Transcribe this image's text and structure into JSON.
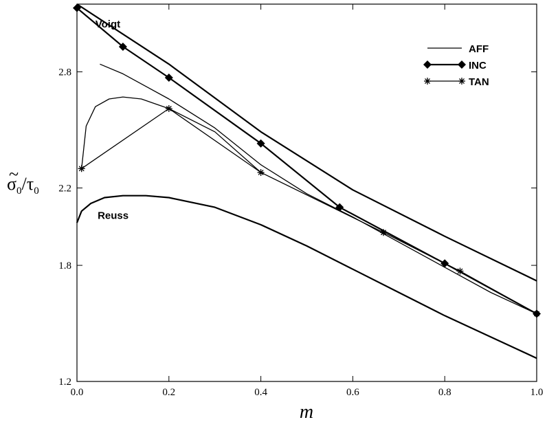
{
  "chart_data": {
    "type": "line",
    "xlabel": "m",
    "ylabel": {
      "tilde": "~",
      "sigma": "σ",
      "sigma_sub": "0",
      "slash": "/",
      "tau": "τ",
      "tau_sub": "0"
    },
    "xlim": [
      0,
      1.0
    ],
    "ylim": [
      1.2,
      3.15
    ],
    "xticks": [
      "0.0",
      "0.2",
      "0.4",
      "0.6",
      "0.8",
      "1.0"
    ],
    "yticks": [
      "1.2",
      "1.8",
      "2.2",
      "2.8"
    ],
    "ytick_values": [
      1.2,
      1.8,
      2.2,
      2.8
    ],
    "legend_position": "top-right",
    "annotations": [
      {
        "text": "Voigt",
        "x": 0.04,
        "y": 3.03
      },
      {
        "text": "Reuss",
        "x": 0.045,
        "y": 2.04
      }
    ],
    "series": [
      {
        "name": "",
        "label": "Voigt",
        "style": "thick",
        "marker": "none",
        "x": [
          0.0,
          0.2,
          0.4,
          0.6,
          0.8,
          1.0
        ],
        "y": [
          3.15,
          2.84,
          2.49,
          2.19,
          1.95,
          1.72
        ]
      },
      {
        "name": "",
        "label": "Reuss",
        "style": "thick",
        "marker": "none",
        "x": [
          0.0,
          0.01,
          0.03,
          0.06,
          0.1,
          0.15,
          0.2,
          0.3,
          0.4,
          0.5,
          0.6,
          0.7,
          0.8,
          0.9,
          1.0
        ],
        "y": [
          2.02,
          2.08,
          2.12,
          2.15,
          2.16,
          2.16,
          2.15,
          2.1,
          2.01,
          1.9,
          1.78,
          1.66,
          1.54,
          1.43,
          1.32
        ]
      },
      {
        "name": "AFF",
        "style": "thin",
        "marker": "none",
        "x": [
          0.05,
          0.1,
          0.2,
          0.3,
          0.4,
          0.5,
          0.6,
          0.7,
          0.8,
          0.9,
          1.0
        ],
        "y": [
          2.84,
          2.79,
          2.66,
          2.51,
          2.32,
          2.17,
          2.05,
          1.92,
          1.79,
          1.66,
          1.55
        ]
      },
      {
        "name": "",
        "style": "thin",
        "marker": "none",
        "x": [
          0.01,
          0.02,
          0.04,
          0.07,
          0.1,
          0.14,
          0.2,
          0.3,
          0.4
        ],
        "y": [
          2.3,
          2.52,
          2.62,
          2.66,
          2.67,
          2.66,
          2.61,
          2.49,
          2.28
        ]
      },
      {
        "name": "INC",
        "style": "thick",
        "marker": "diamond",
        "x": [
          0.0,
          0.1,
          0.2,
          0.4,
          0.5714,
          0.8,
          1.0
        ],
        "y": [
          3.13,
          2.93,
          2.77,
          2.43,
          2.1,
          1.81,
          1.55
        ]
      },
      {
        "name": "TAN",
        "style": "thin",
        "marker": "star",
        "x": [
          0.01,
          0.2,
          0.4,
          0.6667,
          0.8333,
          1.0
        ],
        "y": [
          2.3,
          2.61,
          2.28,
          1.97,
          1.77,
          1.55
        ]
      }
    ]
  }
}
